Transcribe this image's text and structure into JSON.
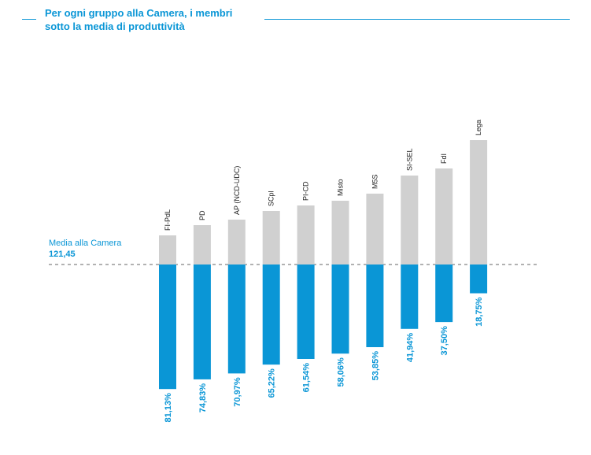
{
  "title": {
    "line1": "Per ogni gruppo alla Camera, i membri",
    "line2": "sotto la media di produttività"
  },
  "reference": {
    "label": "Media alla Camera",
    "value": "121,45"
  },
  "colors": {
    "accent": "#0a96d6",
    "upper_bar": "#d0d0d0",
    "reference_line": "#666666"
  },
  "chart_data": {
    "type": "bar",
    "description_note": "",
    "categories": [
      "FI-PdL",
      "PD",
      "AP (NCD-UDC)",
      "SCpl",
      "PI-CD",
      "Misto",
      "M5S",
      "SI-SEL",
      "FdI",
      "Lega"
    ],
    "series": [
      {
        "values": [
          81.13,
          74.83,
          70.97,
          65.22,
          61.54,
          58.06,
          53.85,
          41.94,
          37.5,
          18.75
        ],
        "labels": [
          "81,13%",
          "74,83%",
          "70,97%",
          "65,22%",
          "61,54%",
          "58,06%",
          "53,85%",
          "41,94%",
          "37,50%",
          "18,75%"
        ]
      }
    ],
    "ylim": [
      0,
      100
    ]
  }
}
